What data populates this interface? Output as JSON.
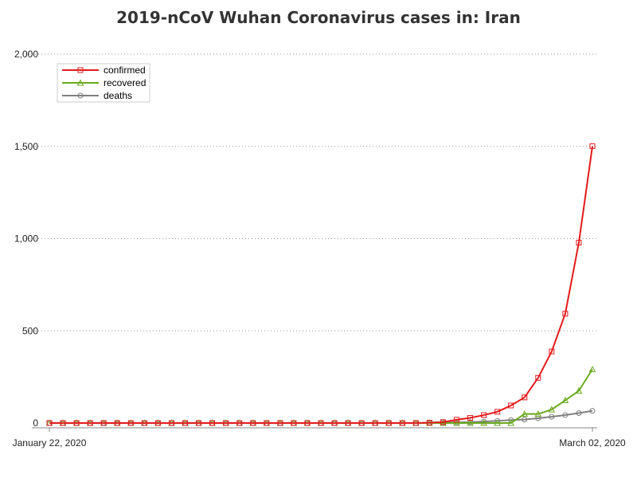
{
  "chart_data": {
    "type": "line",
    "title": "2019-nCoV Wuhan Coronavirus cases in: Iran",
    "xlabel": "",
    "ylabel": "",
    "x_tick_labels": [
      "January 22, 2020",
      "March 02, 2020"
    ],
    "y_ticks": [
      {
        "value": 0,
        "label": "0"
      },
      {
        "value": 500,
        "label": "500"
      },
      {
        "value": 1000,
        "label": "1,000"
      },
      {
        "value": 1500,
        "label": "1,500"
      },
      {
        "value": 2000,
        "label": "2,000"
      }
    ],
    "ylim": [
      0,
      2000
    ],
    "grid": "horizontal dotted",
    "legend": "top-left",
    "x": [
      "2020-01-22",
      "2020-01-23",
      "2020-01-24",
      "2020-01-25",
      "2020-01-26",
      "2020-01-27",
      "2020-01-28",
      "2020-01-29",
      "2020-01-30",
      "2020-01-31",
      "2020-02-01",
      "2020-02-02",
      "2020-02-03",
      "2020-02-04",
      "2020-02-05",
      "2020-02-06",
      "2020-02-07",
      "2020-02-08",
      "2020-02-09",
      "2020-02-10",
      "2020-02-11",
      "2020-02-12",
      "2020-02-13",
      "2020-02-14",
      "2020-02-15",
      "2020-02-16",
      "2020-02-17",
      "2020-02-18",
      "2020-02-19",
      "2020-02-20",
      "2020-02-21",
      "2020-02-22",
      "2020-02-23",
      "2020-02-24",
      "2020-02-25",
      "2020-02-26",
      "2020-02-27",
      "2020-02-28",
      "2020-02-29",
      "2020-03-01",
      "2020-03-02"
    ],
    "series": [
      {
        "name": "confirmed",
        "color": "#e41a1c",
        "marker": "square",
        "values": [
          0,
          0,
          0,
          0,
          0,
          0,
          0,
          0,
          0,
          0,
          0,
          0,
          0,
          0,
          0,
          0,
          0,
          0,
          0,
          0,
          0,
          0,
          0,
          0,
          0,
          0,
          0,
          0,
          2,
          5,
          18,
          28,
          43,
          61,
          95,
          139,
          245,
          388,
          593,
          978,
          1501
        ]
      },
      {
        "name": "recovered",
        "color": "#6aaa1e",
        "marker": "triangle",
        "values": [
          0,
          0,
          0,
          0,
          0,
          0,
          0,
          0,
          0,
          0,
          0,
          0,
          0,
          0,
          0,
          0,
          0,
          0,
          0,
          0,
          0,
          0,
          0,
          0,
          0,
          0,
          0,
          0,
          0,
          0,
          0,
          0,
          0,
          0,
          0,
          49,
          49,
          73,
          123,
          175,
          291
        ]
      },
      {
        "name": "deaths",
        "color": "#808080",
        "marker": "circle",
        "values": [
          0,
          0,
          0,
          0,
          0,
          0,
          0,
          0,
          0,
          0,
          0,
          0,
          0,
          0,
          0,
          0,
          0,
          0,
          0,
          0,
          0,
          0,
          0,
          0,
          0,
          0,
          0,
          0,
          2,
          4,
          4,
          5,
          8,
          12,
          16,
          19,
          26,
          34,
          43,
          54,
          66
        ]
      }
    ]
  }
}
